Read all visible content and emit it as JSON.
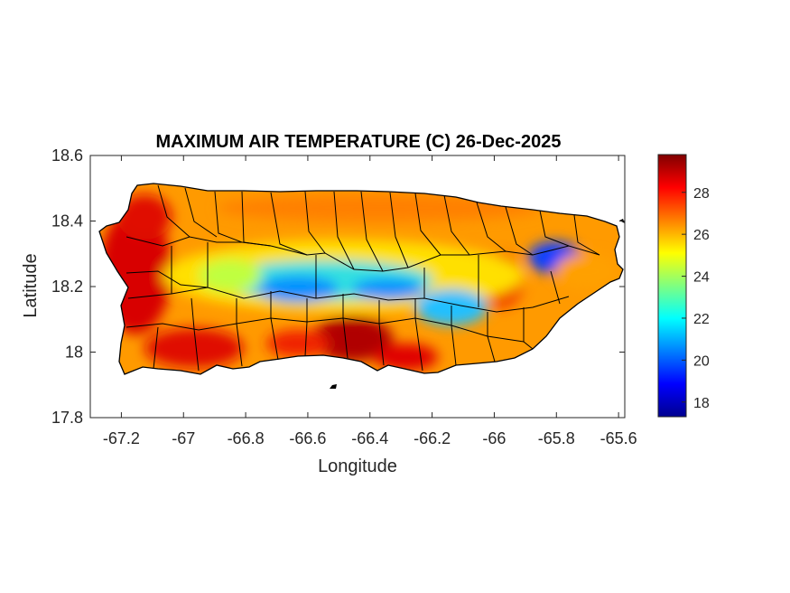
{
  "figure": {
    "title": "MAXIMUM AIR TEMPERATURE (C) 26-Dec-2025"
  },
  "map": {
    "xlabel": "Longitude",
    "ylabel": "Latitude",
    "xlim": [
      -67.3,
      -65.58
    ],
    "ylim": [
      17.8,
      18.6
    ],
    "xticks": [
      -67.2,
      -67,
      -66.8,
      -66.6,
      -66.4,
      -66.2,
      -66,
      -65.8,
      -65.6
    ],
    "xtick_labels": [
      "-67.2",
      "-67",
      "-66.8",
      "-66.6",
      "-66.4",
      "-66.2",
      "-66",
      "-65.8",
      "-65.6"
    ],
    "yticks": [
      17.8,
      18,
      18.2,
      18.4,
      18.6
    ],
    "ytick_labels": [
      "17.8",
      "18",
      "18.2",
      "18.4",
      "18.6"
    ],
    "grid": false,
    "colormap": "jet",
    "boundaries": "municipalities"
  },
  "colorbar": {
    "range": [
      17.3,
      29.8
    ],
    "ticks": [
      18,
      20,
      22,
      24,
      26,
      28
    ],
    "tick_labels": [
      "18",
      "20",
      "22",
      "24",
      "26",
      "28"
    ],
    "placement": "right"
  },
  "colors": {
    "axis": "#262626",
    "jet": [
      "#00008f",
      "#0000ff",
      "#00ffff",
      "#ffff00",
      "#ff0000",
      "#800000"
    ]
  }
}
